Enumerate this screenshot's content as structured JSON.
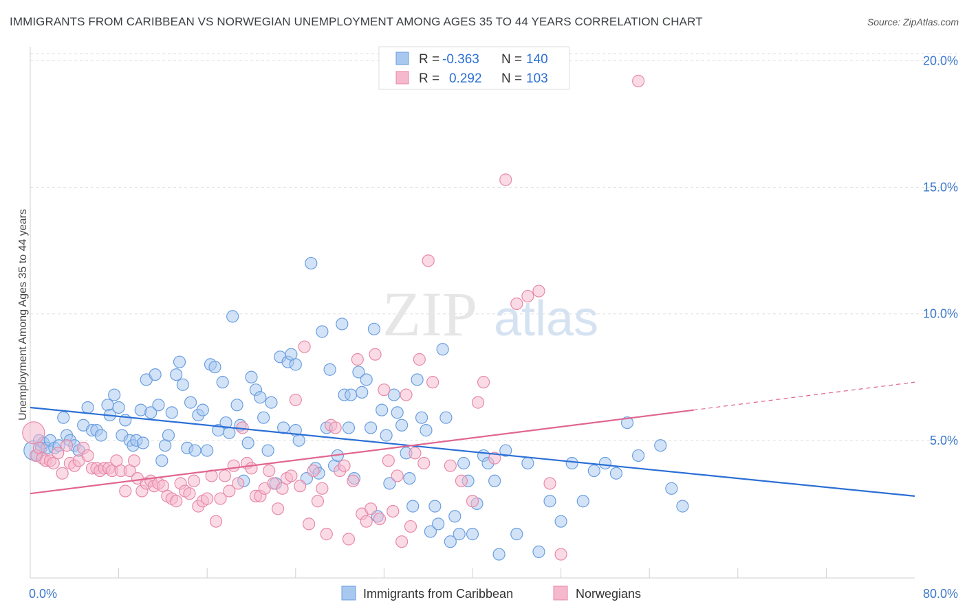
{
  "header": {
    "title": "IMMIGRANTS FROM CARIBBEAN VS NORWEGIAN UNEMPLOYMENT AMONG AGES 35 TO 44 YEARS CORRELATION CHART",
    "source": "Source: ZipAtlas.com"
  },
  "watermark": {
    "zip": "ZIP",
    "atlas": "atlas"
  },
  "legend_top": [
    {
      "r_label": "R =",
      "r_value": "-0.363",
      "n_label": "N =",
      "n_value": "140"
    },
    {
      "r_label": "R =",
      "r_value": "0.292",
      "n_label": "N =",
      "n_value": "103"
    }
  ],
  "chart_data": {
    "type": "scatter",
    "xlabel": "",
    "ylabel": "Unemployment Among Ages 35 to 44 years",
    "xlim": [
      0,
      80
    ],
    "ylim": [
      0,
      20.5
    ],
    "x_tick_labels": [
      {
        "value": 0,
        "label": "0.0%"
      },
      {
        "value": 80,
        "label": "80.0%"
      }
    ],
    "y_tick_labels": [
      {
        "value": 5,
        "label": "5.0%"
      },
      {
        "value": 10,
        "label": "10.0%"
      },
      {
        "value": 15,
        "label": "15.0%"
      },
      {
        "value": 20,
        "label": "20.0%"
      }
    ],
    "grid": "horizontal dashed",
    "legend_position": "bottom-center",
    "colors": {
      "blue_fill": "#a8c8f0",
      "blue_stroke": "#6a9ee0",
      "blue_line": "#2a6fd6",
      "pink_fill": "#f5b8cc",
      "pink_stroke": "#e889a8",
      "pink_line": "#e0668f",
      "tick_label": "#3b78c9"
    },
    "series": [
      {
        "name": "Immigrants from Caribbean",
        "color": "blue",
        "trend": {
          "x0": 0,
          "y0": 6.3,
          "x1": 80,
          "y1": 2.8
        },
        "points": [
          [
            0.3,
            4.6
          ],
          [
            0.6,
            4.4
          ],
          [
            0.8,
            5.0
          ],
          [
            1.0,
            4.7
          ],
          [
            1.2,
            4.9
          ],
          [
            1.5,
            4.7
          ],
          [
            1.8,
            5.0
          ],
          [
            2.2,
            4.7
          ],
          [
            2.6,
            4.8
          ],
          [
            3.0,
            5.9
          ],
          [
            3.3,
            5.2
          ],
          [
            3.6,
            5.0
          ],
          [
            4.0,
            4.8
          ],
          [
            4.4,
            4.6
          ],
          [
            4.8,
            5.6
          ],
          [
            5.2,
            6.3
          ],
          [
            5.6,
            5.4
          ],
          [
            6.0,
            5.4
          ],
          [
            6.4,
            5.2
          ],
          [
            7.0,
            6.4
          ],
          [
            7.2,
            6.0
          ],
          [
            7.6,
            6.8
          ],
          [
            8.0,
            6.3
          ],
          [
            8.3,
            5.2
          ],
          [
            8.6,
            5.8
          ],
          [
            9.0,
            5.0
          ],
          [
            9.3,
            4.8
          ],
          [
            9.6,
            5.0
          ],
          [
            10.0,
            6.2
          ],
          [
            10.2,
            4.9
          ],
          [
            10.5,
            7.4
          ],
          [
            10.9,
            6.1
          ],
          [
            11.3,
            7.6
          ],
          [
            11.6,
            6.4
          ],
          [
            11.9,
            4.2
          ],
          [
            12.2,
            4.8
          ],
          [
            12.5,
            5.2
          ],
          [
            12.8,
            6.1
          ],
          [
            13.2,
            7.6
          ],
          [
            13.5,
            8.1
          ],
          [
            13.8,
            7.2
          ],
          [
            14.2,
            4.7
          ],
          [
            14.5,
            6.5
          ],
          [
            14.9,
            4.6
          ],
          [
            15.2,
            6.0
          ],
          [
            15.6,
            6.2
          ],
          [
            16.0,
            4.6
          ],
          [
            16.3,
            8.0
          ],
          [
            16.7,
            7.9
          ],
          [
            17.0,
            5.4
          ],
          [
            17.4,
            7.3
          ],
          [
            17.7,
            5.7
          ],
          [
            18.0,
            5.3
          ],
          [
            18.3,
            9.9
          ],
          [
            18.7,
            6.4
          ],
          [
            19.0,
            5.6
          ],
          [
            19.3,
            3.4
          ],
          [
            19.7,
            4.9
          ],
          [
            20.0,
            7.5
          ],
          [
            20.4,
            7.0
          ],
          [
            20.8,
            6.7
          ],
          [
            21.1,
            5.9
          ],
          [
            21.5,
            4.6
          ],
          [
            21.8,
            6.5
          ],
          [
            22.2,
            3.3
          ],
          [
            22.6,
            8.3
          ],
          [
            22.9,
            5.5
          ],
          [
            23.3,
            8.1
          ],
          [
            23.6,
            8.4
          ],
          [
            24.0,
            8.0
          ],
          [
            24.3,
            5.0
          ],
          [
            24.0,
            5.4
          ],
          [
            25.0,
            3.5
          ],
          [
            25.4,
            12.0
          ],
          [
            25.8,
            3.9
          ],
          [
            26.1,
            3.7
          ],
          [
            26.4,
            9.3
          ],
          [
            26.8,
            5.5
          ],
          [
            27.1,
            7.8
          ],
          [
            27.5,
            4.0
          ],
          [
            27.8,
            4.4
          ],
          [
            28.2,
            9.6
          ],
          [
            28.4,
            6.8
          ],
          [
            28.8,
            5.5
          ],
          [
            29.0,
            6.8
          ],
          [
            29.3,
            3.5
          ],
          [
            29.7,
            7.7
          ],
          [
            30.0,
            6.9
          ],
          [
            30.4,
            7.4
          ],
          [
            30.8,
            5.5
          ],
          [
            31.1,
            9.4
          ],
          [
            31.4,
            2.0
          ],
          [
            31.8,
            6.2
          ],
          [
            32.2,
            5.2
          ],
          [
            32.5,
            3.3
          ],
          [
            32.9,
            6.8
          ],
          [
            33.2,
            6.1
          ],
          [
            33.6,
            5.6
          ],
          [
            34.0,
            4.5
          ],
          [
            34.3,
            3.5
          ],
          [
            34.6,
            2.4
          ],
          [
            35.0,
            7.4
          ],
          [
            35.4,
            5.9
          ],
          [
            35.8,
            5.4
          ],
          [
            36.2,
            1.4
          ],
          [
            36.6,
            2.4
          ],
          [
            36.9,
            1.7
          ],
          [
            37.3,
            8.6
          ],
          [
            37.6,
            5.9
          ],
          [
            38.0,
            1.0
          ],
          [
            38.4,
            2.0
          ],
          [
            38.8,
            1.3
          ],
          [
            39.2,
            4.1
          ],
          [
            39.6,
            3.4
          ],
          [
            40.0,
            1.3
          ],
          [
            40.4,
            2.5
          ],
          [
            41.0,
            4.4
          ],
          [
            41.4,
            4.1
          ],
          [
            42.0,
            3.4
          ],
          [
            42.4,
            0.5
          ],
          [
            43.0,
            4.6
          ],
          [
            44.0,
            1.3
          ],
          [
            45.0,
            4.1
          ],
          [
            46.0,
            0.6
          ],
          [
            47.0,
            2.6
          ],
          [
            48.0,
            1.8
          ],
          [
            49.0,
            4.1
          ],
          [
            50.0,
            2.6
          ],
          [
            51.0,
            3.8
          ],
          [
            52.0,
            4.1
          ],
          [
            53.0,
            3.7
          ],
          [
            54.0,
            5.7
          ],
          [
            55.0,
            4.4
          ],
          [
            57.0,
            4.8
          ],
          [
            58.0,
            3.1
          ],
          [
            59.0,
            2.4
          ]
        ]
      },
      {
        "name": "Norwegians",
        "color": "pink",
        "trend": {
          "x0": 0,
          "y0": 2.9,
          "x1": 60,
          "y1": 6.2,
          "dash_to_x": 80,
          "dash_to_y": 7.3
        },
        "points": [
          [
            0.3,
            5.3
          ],
          [
            0.5,
            4.4
          ],
          [
            0.8,
            4.7
          ],
          [
            1.1,
            4.3
          ],
          [
            1.4,
            4.2
          ],
          [
            1.8,
            4.2
          ],
          [
            2.1,
            4.1
          ],
          [
            2.5,
            4.5
          ],
          [
            2.9,
            3.7
          ],
          [
            3.3,
            4.8
          ],
          [
            3.6,
            4.1
          ],
          [
            4.0,
            4.0
          ],
          [
            4.4,
            4.2
          ],
          [
            4.8,
            4.7
          ],
          [
            5.2,
            4.4
          ],
          [
            5.6,
            3.9
          ],
          [
            6.0,
            3.9
          ],
          [
            6.3,
            3.8
          ],
          [
            6.7,
            3.9
          ],
          [
            7.1,
            3.9
          ],
          [
            7.4,
            3.8
          ],
          [
            7.8,
            4.2
          ],
          [
            8.2,
            3.8
          ],
          [
            8.6,
            3.0
          ],
          [
            9.0,
            3.8
          ],
          [
            9.4,
            4.2
          ],
          [
            9.7,
            3.5
          ],
          [
            10.1,
            3.0
          ],
          [
            10.5,
            3.3
          ],
          [
            10.9,
            3.4
          ],
          [
            11.2,
            3.2
          ],
          [
            11.6,
            3.3
          ],
          [
            12.0,
            3.2
          ],
          [
            12.4,
            2.8
          ],
          [
            12.8,
            2.7
          ],
          [
            13.2,
            2.6
          ],
          [
            13.6,
            3.3
          ],
          [
            14.0,
            3.0
          ],
          [
            14.4,
            2.9
          ],
          [
            14.8,
            3.4
          ],
          [
            15.2,
            2.4
          ],
          [
            15.6,
            2.6
          ],
          [
            16.0,
            2.7
          ],
          [
            16.4,
            3.6
          ],
          [
            16.8,
            1.8
          ],
          [
            17.2,
            2.7
          ],
          [
            17.6,
            3.6
          ],
          [
            18.0,
            3.0
          ],
          [
            18.4,
            4.0
          ],
          [
            18.8,
            3.3
          ],
          [
            19.2,
            5.5
          ],
          [
            19.6,
            4.1
          ],
          [
            20.0,
            3.9
          ],
          [
            20.4,
            2.8
          ],
          [
            20.8,
            2.8
          ],
          [
            21.2,
            3.1
          ],
          [
            21.6,
            3.8
          ],
          [
            22.0,
            3.3
          ],
          [
            22.4,
            2.3
          ],
          [
            22.8,
            3.1
          ],
          [
            23.2,
            3.5
          ],
          [
            23.6,
            3.6
          ],
          [
            24.0,
            6.6
          ],
          [
            24.4,
            3.2
          ],
          [
            24.8,
            8.7
          ],
          [
            25.2,
            1.7
          ],
          [
            25.6,
            3.8
          ],
          [
            26.0,
            2.6
          ],
          [
            26.4,
            3.1
          ],
          [
            26.8,
            1.3
          ],
          [
            27.2,
            5.6
          ],
          [
            27.6,
            5.5
          ],
          [
            28.0,
            3.8
          ],
          [
            28.4,
            4.0
          ],
          [
            28.8,
            1.1
          ],
          [
            29.2,
            3.4
          ],
          [
            29.6,
            8.2
          ],
          [
            30.0,
            2.1
          ],
          [
            30.4,
            1.8
          ],
          [
            30.8,
            2.3
          ],
          [
            31.2,
            8.4
          ],
          [
            31.6,
            1.9
          ],
          [
            32.0,
            7.0
          ],
          [
            32.4,
            4.2
          ],
          [
            32.8,
            2.2
          ],
          [
            33.2,
            3.6
          ],
          [
            33.6,
            1.0
          ],
          [
            34.0,
            6.8
          ],
          [
            34.4,
            1.6
          ],
          [
            34.8,
            4.5
          ],
          [
            35.2,
            8.2
          ],
          [
            35.6,
            4.1
          ],
          [
            36.0,
            12.1
          ],
          [
            36.4,
            7.3
          ],
          [
            38.0,
            4.0
          ],
          [
            39.0,
            3.4
          ],
          [
            40.0,
            2.6
          ],
          [
            41.0,
            7.3
          ],
          [
            42.0,
            4.3
          ],
          [
            43.0,
            15.3
          ],
          [
            44.0,
            10.4
          ],
          [
            45.0,
            10.7
          ],
          [
            46.0,
            10.9
          ],
          [
            47.0,
            3.3
          ],
          [
            48.0,
            0.5
          ],
          [
            55.0,
            19.2
          ],
          [
            40.5,
            6.5
          ]
        ]
      }
    ]
  }
}
